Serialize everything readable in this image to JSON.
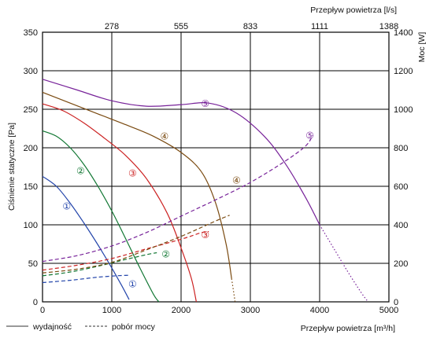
{
  "chart_data": {
    "type": "line",
    "top_axis": {
      "label": "Przepływ powietrza [l/s]",
      "ticks": [
        "278",
        "555",
        "833",
        "1111",
        "1388"
      ]
    },
    "x_axis": {
      "label": "Przepływ powietrza [m³/h]",
      "range": [
        0,
        5000
      ],
      "ticks": [
        0,
        1000,
        2000,
        3000,
        4000,
        5000
      ]
    },
    "y_axis_left": {
      "label": "Ciśnienie statyczne [Pa]",
      "range": [
        0,
        350
      ],
      "ticks": [
        0,
        50,
        100,
        150,
        200,
        250,
        300,
        350
      ]
    },
    "y_axis_right": {
      "label": "Moc [W]",
      "range": [
        0,
        1400
      ],
      "ticks": [
        0,
        200,
        400,
        600,
        800,
        1000,
        1200,
        1400
      ]
    },
    "grid": true,
    "legend": {
      "placement": "bottom-left",
      "entries": [
        {
          "label": "wydajność",
          "style": "solid"
        },
        {
          "label": "pobór mocy",
          "style": "dashed"
        }
      ]
    },
    "series": [
      {
        "marker": "①",
        "color": "#2244aa",
        "pressure": [
          [
            0,
            163
          ],
          [
            200,
            150
          ],
          [
            400,
            128
          ],
          [
            600,
            102
          ],
          [
            800,
            74
          ],
          [
            1000,
            44
          ],
          [
            1150,
            20
          ],
          [
            1250,
            3
          ]
        ],
        "power": [
          [
            0,
            100
          ],
          [
            400,
            112
          ],
          [
            800,
            128
          ],
          [
            1100,
            136
          ],
          [
            1250,
            138
          ]
        ],
        "marker_pressure_at": [
          350,
          125
        ],
        "marker_power_at": [
          1300,
          95
        ]
      },
      {
        "marker": "②",
        "color": "#117733",
        "pressure": [
          [
            0,
            222
          ],
          [
            200,
            215
          ],
          [
            400,
            200
          ],
          [
            600,
            178
          ],
          [
            800,
            150
          ],
          [
            1000,
            118
          ],
          [
            1200,
            82
          ],
          [
            1400,
            45
          ],
          [
            1600,
            10
          ],
          [
            1680,
            0
          ]
        ],
        "power": [
          [
            0,
            135
          ],
          [
            400,
            155
          ],
          [
            800,
            185
          ],
          [
            1200,
            220
          ],
          [
            1500,
            245
          ],
          [
            1650,
            255
          ]
        ],
        "marker_pressure_at": [
          550,
          171
        ],
        "marker_power_at": [
          1780,
          252
        ]
      },
      {
        "marker": "③",
        "color": "#cc2222",
        "pressure": [
          [
            0,
            257
          ],
          [
            300,
            248
          ],
          [
            600,
            232
          ],
          [
            900,
            212
          ],
          [
            1200,
            190
          ],
          [
            1500,
            160
          ],
          [
            1800,
            115
          ],
          [
            2000,
            70
          ],
          [
            2150,
            30
          ],
          [
            2220,
            0
          ]
        ],
        "power": [
          [
            0,
            165
          ],
          [
            500,
            190
          ],
          [
            1000,
            225
          ],
          [
            1500,
            275
          ],
          [
            2000,
            325
          ],
          [
            2300,
            360
          ],
          [
            2400,
            365
          ]
        ],
        "marker_pressure_at": [
          1300,
          168
        ],
        "marker_power_at": [
          2350,
          352
        ]
      },
      {
        "marker": "④",
        "color": "#7a4a10",
        "pressure": [
          [
            0,
            272
          ],
          [
            400,
            258
          ],
          [
            800,
            244
          ],
          [
            1200,
            230
          ],
          [
            1600,
            215
          ],
          [
            2000,
            194
          ],
          [
            2300,
            168
          ],
          [
            2500,
            128
          ],
          [
            2650,
            75
          ],
          [
            2730,
            30
          ]
        ],
        "pressure_dotted": [
          [
            2730,
            30
          ],
          [
            2780,
            0
          ]
        ],
        "power": [
          [
            0,
            150
          ],
          [
            500,
            170
          ],
          [
            1000,
            205
          ],
          [
            1500,
            270
          ],
          [
            2000,
            340
          ],
          [
            2500,
            420
          ],
          [
            2700,
            450
          ]
        ],
        "marker_pressure_at": [
          1760,
          216
        ],
        "marker_power_at": [
          2800,
          635
        ]
      },
      {
        "marker": "⑤",
        "color": "#772299",
        "pressure": [
          [
            0,
            289
          ],
          [
            500,
            275
          ],
          [
            1000,
            261
          ],
          [
            1500,
            254
          ],
          [
            2000,
            256
          ],
          [
            2400,
            258
          ],
          [
            2800,
            245
          ],
          [
            3200,
            215
          ],
          [
            3500,
            180
          ],
          [
            3800,
            135
          ],
          [
            4000,
            100
          ]
        ],
        "pressure_dotted": [
          [
            4000,
            100
          ],
          [
            4200,
            70
          ],
          [
            4400,
            40
          ],
          [
            4600,
            12
          ],
          [
            4700,
            0
          ]
        ],
        "power": [
          [
            0,
            210
          ],
          [
            500,
            240
          ],
          [
            1000,
            290
          ],
          [
            1500,
            360
          ],
          [
            2000,
            445
          ],
          [
            2500,
            530
          ],
          [
            3000,
            620
          ],
          [
            3500,
            730
          ],
          [
            3800,
            810
          ],
          [
            3900,
            865
          ]
        ],
        "marker_pressure_at": [
          2350,
          258
        ],
        "marker_power_at": [
          3860,
          868
        ]
      }
    ]
  }
}
